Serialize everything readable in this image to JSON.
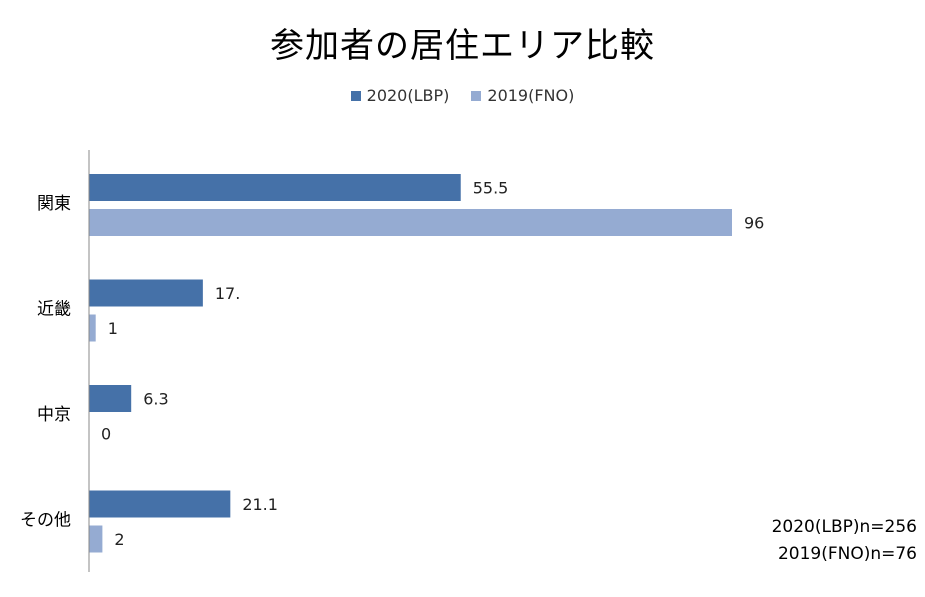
{
  "chart_data": {
    "type": "bar",
    "orientation": "horizontal",
    "title": "参加者の居住エリア比較",
    "categories": [
      "関東",
      "近畿",
      "中京",
      "その他"
    ],
    "series": [
      {
        "name": "2020(LBP)",
        "color": "#4571A8",
        "values": [
          55.5,
          17.0,
          6.3,
          21.1
        ],
        "labels": [
          "55.5",
          "17.",
          "6.3",
          "21.1"
        ]
      },
      {
        "name": "2019(FNO)",
        "color": "#95ABD2",
        "values": [
          96,
          1,
          0,
          2
        ],
        "labels": [
          "96",
          "1",
          "0",
          "2"
        ]
      }
    ],
    "xlim": [
      0,
      100
    ],
    "grid": false,
    "legend_position": "top"
  },
  "notes": {
    "line1": "2020(LBP)n=256",
    "line2": "2019(FNO)n=76"
  }
}
